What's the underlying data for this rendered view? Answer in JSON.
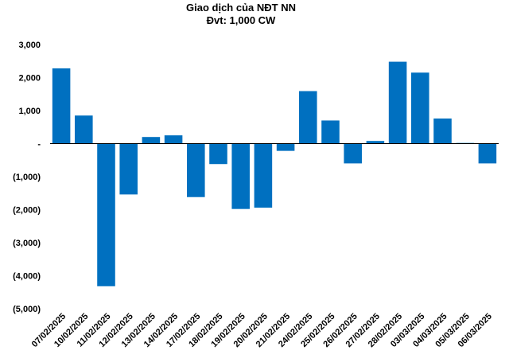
{
  "chart_data": {
    "type": "bar",
    "title": "Giao dịch của NĐT NN",
    "subtitle": "Đvt: 1,000 CW",
    "xlabel": "",
    "ylabel": "",
    "ylim": [
      -5000,
      3000
    ],
    "yticks": [
      3000,
      2000,
      1000,
      0,
      -1000,
      -2000,
      -3000,
      -4000,
      -5000
    ],
    "ytick_labels": [
      "3,000",
      "2,000",
      "1,000",
      "-",
      "(1,000)",
      "(2,000)",
      "(3,000)",
      "(4,000)",
      "(5,000)"
    ],
    "grid": false,
    "legend": "none",
    "bar_color": "#0070C0",
    "categories": [
      "07/02/2025",
      "10/02/2025",
      "11/02/2025",
      "12/02/2025",
      "13/02/2025",
      "14/02/2025",
      "17/02/2025",
      "18/02/2025",
      "19/02/2025",
      "20/02/2025",
      "21/02/2025",
      "24/02/2025",
      "25/02/2025",
      "26/02/2025",
      "27/02/2025",
      "28/02/2025",
      "03/03/2025",
      "04/03/2025",
      "05/03/2025",
      "06/03/2025"
    ],
    "values": [
      2280,
      850,
      -4320,
      -1540,
      200,
      250,
      -1620,
      -620,
      -1980,
      -1940,
      -220,
      1590,
      700,
      -600,
      80,
      2480,
      2150,
      760,
      20,
      -600
    ]
  }
}
